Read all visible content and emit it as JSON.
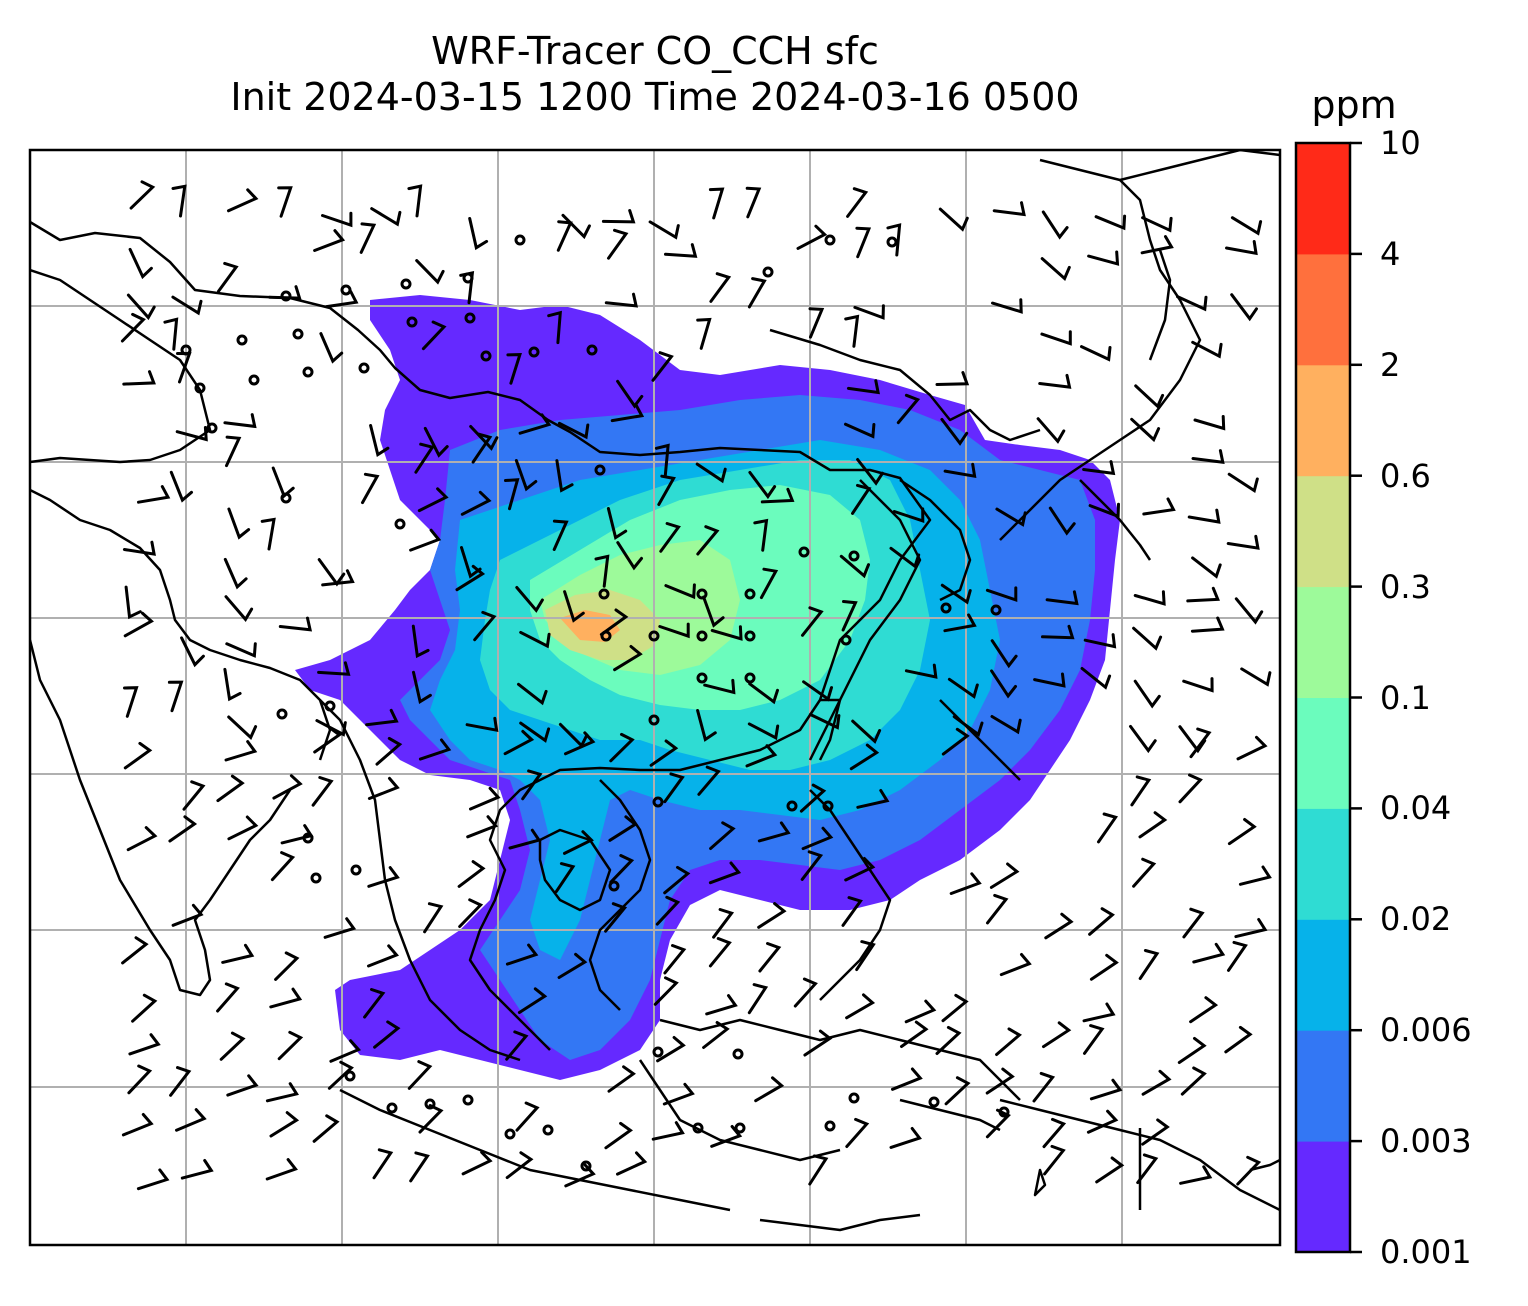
{
  "title": {
    "line1": "WRF-Tracer CO_CCH sfc",
    "line2": "Init 2024-03-15 1200 Time 2024-03-16 0500"
  },
  "colorbar": {
    "unit": "ppm",
    "levels": [
      "0.001",
      "0.003",
      "0.006",
      "0.02",
      "0.04",
      "0.1",
      "0.3",
      "0.6",
      "2",
      "4",
      "10"
    ],
    "colors": [
      "#6529ff",
      "#3377f4",
      "#06b2ea",
      "#2fdcd3",
      "#6bfcbd",
      "#9dfa9a",
      "#cfe087",
      "#ffb05f",
      "#ff703d",
      "#ff2a18"
    ]
  },
  "map": {
    "type": "filled-contour-map",
    "coastlines": true,
    "gridlines": true,
    "wind_barbs": true
  }
}
